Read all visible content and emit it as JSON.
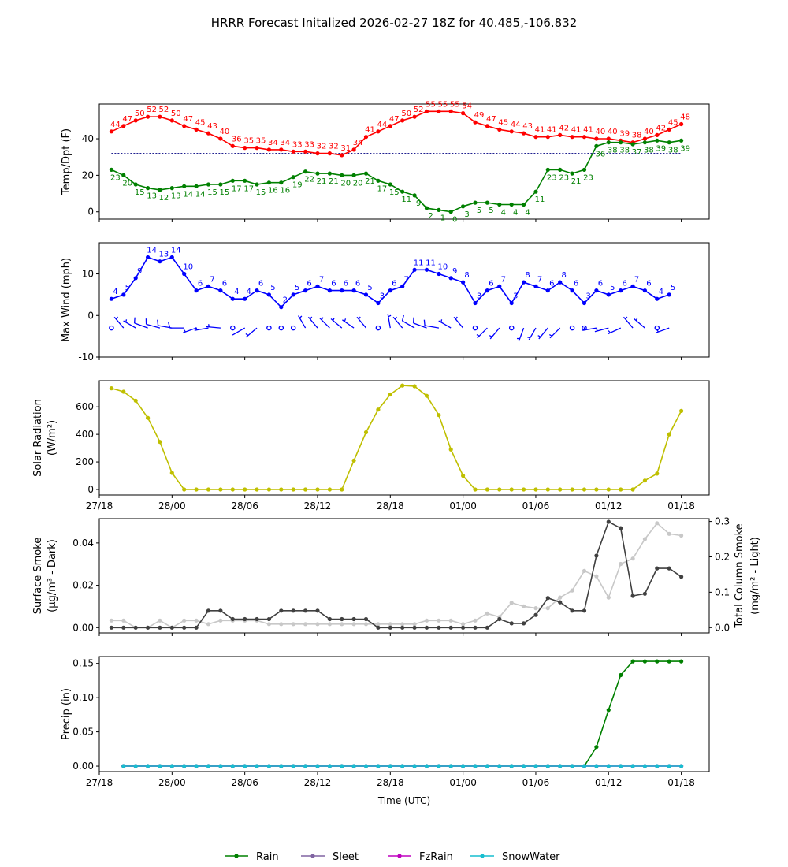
{
  "page": {
    "title": "HRRR Forecast Initalized 2026-02-27 18Z for 40.485,-106.832"
  },
  "time_axis": {
    "xlabel": "Time (UTC)",
    "tick_hours": [
      0,
      6,
      12,
      18,
      24,
      30,
      36,
      42,
      48
    ],
    "tick_labels": [
      "27/18",
      "28/00",
      "28/06",
      "28/12",
      "28/18",
      "01/00",
      "01/06",
      "01/12",
      "01/18"
    ]
  },
  "legend": {
    "items": [
      {
        "label": "Rain",
        "color": "#008000"
      },
      {
        "label": "Sleet",
        "color": "#8064a2"
      },
      {
        "label": "FzRain",
        "color": "#bf00bf"
      },
      {
        "label": "SnowWater",
        "color": "#17becf"
      }
    ]
  },
  "chart_data": [
    {
      "id": "temp",
      "type": "line",
      "ylabel": "Temp/Dpt (F)",
      "ylim": [
        -4,
        59
      ],
      "yticks": [
        0,
        20,
        40
      ],
      "x_start_hour": 1,
      "freezing_line": 32,
      "series": [
        {
          "name": "Temperature",
          "color": "#ff0000",
          "label_side": "above",
          "values": [
            44,
            47,
            50,
            52,
            52,
            50,
            47,
            45,
            43,
            40,
            36,
            35,
            35,
            34,
            34,
            33,
            33,
            32,
            32,
            31,
            34,
            41,
            44,
            47,
            50,
            52,
            55,
            55,
            55,
            54,
            49,
            47,
            45,
            44,
            43,
            41,
            41,
            42,
            41,
            41,
            40,
            40,
            39,
            38,
            40,
            42,
            45,
            48
          ]
        },
        {
          "name": "Dewpoint",
          "color": "#008000",
          "label_side": "below",
          "values": [
            23,
            20,
            15,
            13,
            12,
            13,
            14,
            14,
            15,
            15,
            17,
            17,
            15,
            16,
            16,
            19,
            22,
            21,
            21,
            20,
            20,
            21,
            17,
            15,
            11,
            9,
            2,
            1,
            0,
            3,
            5,
            5,
            4,
            4,
            4,
            11,
            23,
            23,
            21,
            23,
            36,
            38,
            38,
            37,
            38,
            39,
            38,
            39
          ]
        }
      ]
    },
    {
      "id": "wind",
      "type": "line",
      "ylabel": "Max Wind (mph)",
      "ylim": [
        -10,
        17.5
      ],
      "yticks": [
        -10,
        0,
        10
      ],
      "x_start_hour": 1,
      "series": [
        {
          "name": "Max Wind",
          "color": "#0000ff",
          "values": [
            4,
            5,
            9,
            14,
            13,
            14,
            10,
            6,
            7,
            6,
            4,
            4,
            6,
            5,
            2,
            5,
            6,
            7,
            6,
            6,
            6,
            5,
            3,
            6,
            7,
            11,
            11,
            10,
            9,
            8,
            3,
            6,
            7,
            3,
            8,
            7,
            6,
            8,
            6,
            3,
            6,
            5,
            6,
            7,
            6,
            4,
            5
          ]
        }
      ],
      "barb_dirs": [
        0,
        320,
        300,
        290,
        285,
        280,
        270,
        250,
        260,
        275,
        0,
        240,
        230,
        0,
        0,
        0,
        330,
        320,
        315,
        310,
        305,
        320,
        0,
        350,
        320,
        300,
        290,
        280,
        300,
        320,
        0,
        225,
        220,
        0,
        200,
        210,
        220,
        225,
        0,
        0,
        260,
        255,
        245,
        320,
        310,
        0,
        250
      ],
      "barb_level": -3
    },
    {
      "id": "solar",
      "type": "line",
      "ylabel": "Solar Radiation (W/m²)",
      "ylabel_lines": [
        "Solar Radiation",
        "(W/m²)"
      ],
      "ylim": [
        -40,
        790
      ],
      "yticks": [
        0,
        200,
        400,
        600
      ],
      "x_start_hour": 1,
      "series": [
        {
          "name": "Solar Radiation",
          "color": "#bfbf00",
          "values": [
            735,
            710,
            645,
            520,
            345,
            120,
            0,
            0,
            0,
            0,
            0,
            0,
            0,
            0,
            0,
            0,
            0,
            0,
            0,
            0,
            210,
            415,
            580,
            690,
            755,
            750,
            680,
            540,
            290,
            100,
            0,
            0,
            0,
            0,
            0,
            0,
            0,
            0,
            0,
            0,
            0,
            0,
            0,
            0,
            65,
            115,
            400,
            570
          ]
        }
      ]
    },
    {
      "id": "smoke",
      "type": "line",
      "ylabel_lines": [
        "Surface Smoke",
        "(µg/m³ - Dark)"
      ],
      "ylabel2_lines": [
        "Total Column Smoke",
        "(mg/m² - Light)"
      ],
      "ylim": [
        -0.0025,
        0.0515
      ],
      "yticks": [
        0.0,
        0.02,
        0.04
      ],
      "ytick_labels": [
        "0.00",
        "0.02",
        "0.04"
      ],
      "ylim2": [
        -0.015,
        0.308
      ],
      "yticks2": [
        0.0,
        0.1,
        0.2,
        0.3
      ],
      "ytick2_labels": [
        "0.0",
        "0.1",
        "0.2",
        "0.3"
      ],
      "x_start_hour": 1,
      "series": [
        {
          "name": "Surface Smoke",
          "color": "#404040",
          "axis": "left",
          "values": [
            0,
            0,
            0,
            0,
            0,
            0,
            0,
            0,
            0.008,
            0.008,
            0.004,
            0.004,
            0.004,
            0.004,
            0.008,
            0.008,
            0.008,
            0.008,
            0.004,
            0.004,
            0.004,
            0.004,
            0,
            0,
            0,
            0,
            0,
            0,
            0,
            0,
            0,
            0,
            0.004,
            0.002,
            0.002,
            0.006,
            0.014,
            0.012,
            0.008,
            0.008,
            0.034,
            0.05,
            0.047,
            0.015,
            0.016,
            0.028,
            0.028,
            0.024
          ]
        },
        {
          "name": "Total Column Smoke",
          "color": "#c8c8c8",
          "axis": "right",
          "values": [
            0.02,
            0.02,
            0,
            0,
            0.02,
            0,
            0.02,
            0.02,
            0.01,
            0.02,
            0.02,
            0.02,
            0.02,
            0.01,
            0.01,
            0.01,
            0.01,
            0.01,
            0.01,
            0.01,
            0.01,
            0.01,
            0.01,
            0.01,
            0.01,
            0.01,
            0.02,
            0.02,
            0.02,
            0.01,
            0.02,
            0.04,
            0.03,
            0.07,
            0.06,
            0.055,
            0.055,
            0.085,
            0.105,
            0.16,
            0.145,
            0.085,
            0.18,
            0.195,
            0.25,
            0.295,
            0.265,
            0.26
          ]
        }
      ]
    },
    {
      "id": "precip",
      "type": "line",
      "ylabel": "Precip (in)",
      "ylim": [
        -0.008,
        0.16
      ],
      "yticks": [
        0.0,
        0.05,
        0.1,
        0.15
      ],
      "ytick_labels": [
        "0.00",
        "0.05",
        "0.10",
        "0.15"
      ],
      "x_start_hour": 2,
      "series": [
        {
          "name": "Rain",
          "color": "#008000",
          "values": [
            0,
            0,
            0,
            0,
            0,
            0,
            0,
            0,
            0,
            0,
            0,
            0,
            0,
            0,
            0,
            0,
            0,
            0,
            0,
            0,
            0,
            0,
            0,
            0,
            0,
            0,
            0,
            0,
            0,
            0,
            0,
            0,
            0,
            0,
            0,
            0,
            0,
            0,
            0,
            0.028,
            0.082,
            0.133,
            0.153,
            0.153,
            0.153,
            0.153,
            0.153
          ]
        },
        {
          "name": "Sleet",
          "color": "#8064a2",
          "values": [
            0,
            0,
            0,
            0,
            0,
            0,
            0,
            0,
            0,
            0,
            0,
            0,
            0,
            0,
            0,
            0,
            0,
            0,
            0,
            0,
            0,
            0,
            0,
            0,
            0,
            0,
            0,
            0,
            0,
            0,
            0,
            0,
            0,
            0,
            0,
            0,
            0,
            0,
            0,
            0,
            0,
            0,
            0,
            0,
            0,
            0,
            0
          ]
        },
        {
          "name": "FzRain",
          "color": "#bf00bf",
          "values": [
            0,
            0,
            0,
            0,
            0,
            0,
            0,
            0,
            0,
            0,
            0,
            0,
            0,
            0,
            0,
            0,
            0,
            0,
            0,
            0,
            0,
            0,
            0,
            0,
            0,
            0,
            0,
            0,
            0,
            0,
            0,
            0,
            0,
            0,
            0,
            0,
            0,
            0,
            0,
            0,
            0,
            0,
            0,
            0,
            0,
            0,
            0
          ]
        },
        {
          "name": "SnowWater",
          "color": "#17becf",
          "values": [
            0,
            0,
            0,
            0,
            0,
            0,
            0,
            0,
            0,
            0,
            0,
            0,
            0,
            0,
            0,
            0,
            0,
            0,
            0,
            0,
            0,
            0,
            0,
            0,
            0,
            0,
            0,
            0,
            0,
            0,
            0,
            0,
            0,
            0,
            0,
            0,
            0,
            0,
            0,
            0,
            0,
            0,
            0,
            0,
            0,
            0,
            0
          ]
        }
      ]
    }
  ]
}
